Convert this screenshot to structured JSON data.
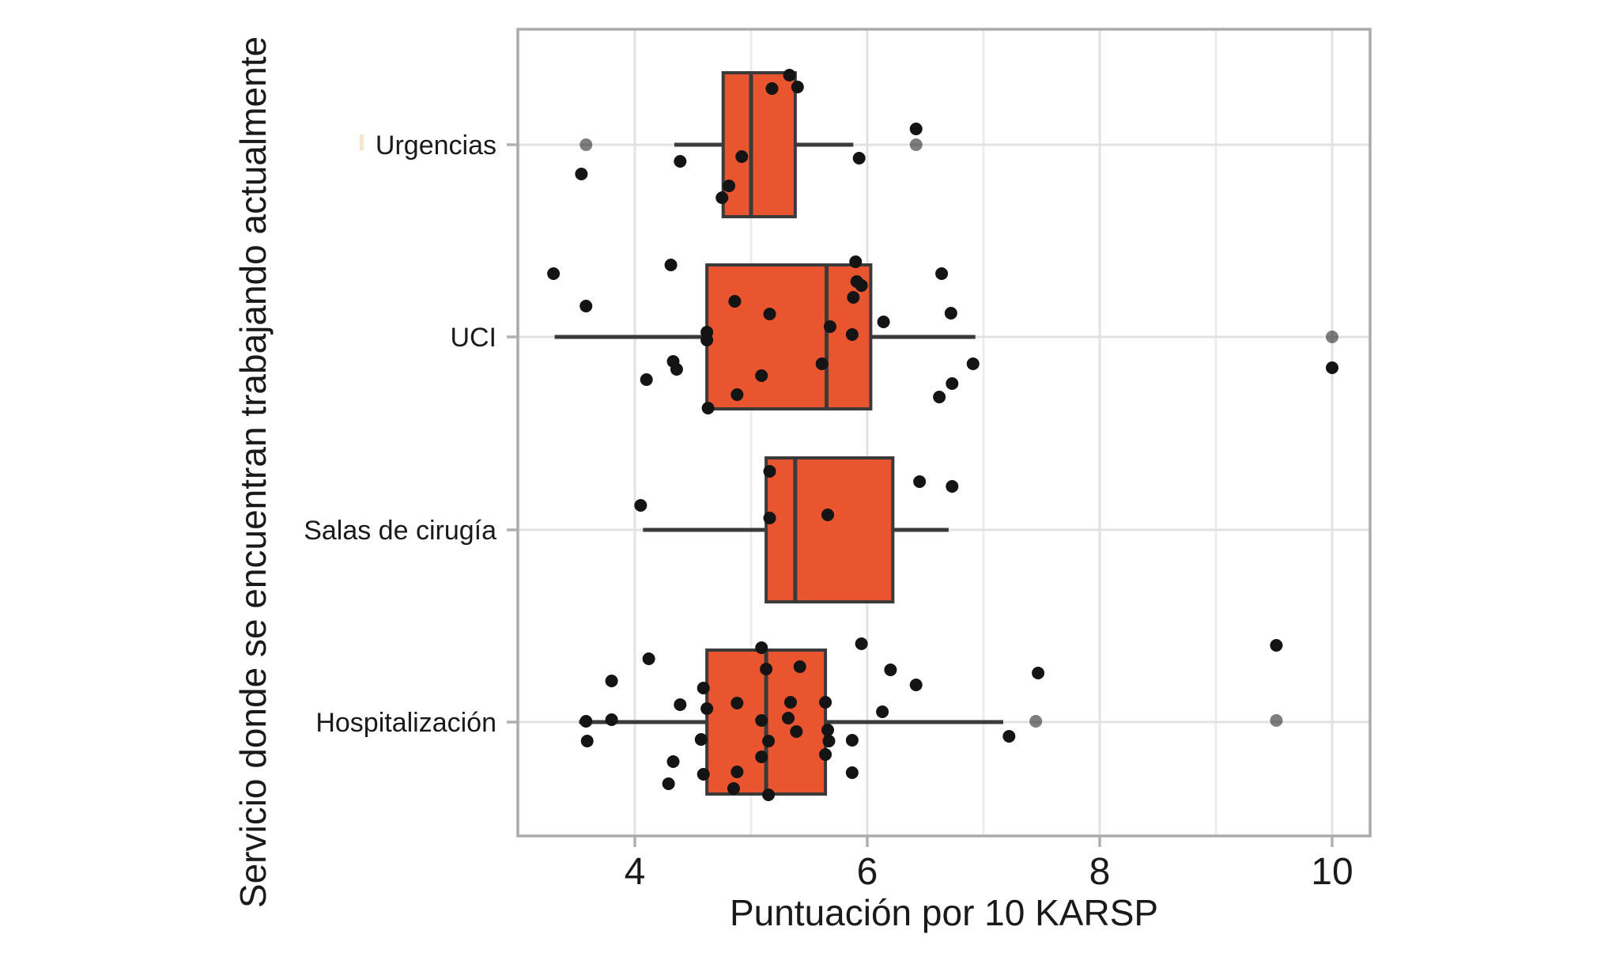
{
  "chart_data": {
    "type": "boxplot",
    "orientation": "horizontal",
    "title": "",
    "xlabel": "Puntuación por 10 KARSP",
    "ylabel": "Servicio donde se encuentran trabajando actualmente",
    "xlim": [
      2.99,
      10.33
    ],
    "x_ticks": [
      4,
      6,
      8,
      10
    ],
    "x_minor_gridlines": [
      5,
      7,
      9
    ],
    "grid": "on",
    "colors": {
      "box_fill": "#E8552F",
      "box_stroke": "#3A3A3A",
      "point": "#141414",
      "grid_major": "#E2E2E2",
      "grid_minor": "#ECECEC",
      "panel_border": "#ABABAB",
      "tick_mark": "#B0B0B0",
      "text": "#1A1A1A",
      "artifact": "#F4E7CC"
    },
    "categories": [
      {
        "label": "Urgencias",
        "q1": 4.76,
        "median": 5.0,
        "q3": 5.38,
        "whisker_low": 4.34,
        "whisker_high": 5.88,
        "points": [
          [
            3.58,
            0,
            1
          ],
          [
            3.54,
            37,
            0
          ],
          [
            4.39,
            21,
            0
          ],
          [
            4.75,
            67,
            0
          ],
          [
            4.81,
            52,
            0
          ],
          [
            4.92,
            15,
            0
          ],
          [
            5.18,
            -71,
            0
          ],
          [
            5.33,
            -88,
            0
          ],
          [
            5.4,
            -73,
            0
          ],
          [
            5.93,
            17,
            0
          ],
          [
            6.42,
            -20,
            0
          ],
          [
            6.42,
            0,
            1
          ]
        ]
      },
      {
        "label": "UCI",
        "q1": 4.62,
        "median": 5.65,
        "q3": 6.03,
        "whisker_low": 3.31,
        "whisker_high": 6.93,
        "points": [
          [
            3.3,
            -80,
            0
          ],
          [
            3.58,
            -39,
            0
          ],
          [
            4.1,
            54,
            0
          ],
          [
            4.31,
            -91,
            0
          ],
          [
            4.33,
            31,
            0
          ],
          [
            4.36,
            41,
            0
          ],
          [
            4.62,
            -6,
            0
          ],
          [
            4.62,
            4,
            0
          ],
          [
            4.63,
            90,
            0
          ],
          [
            4.86,
            -45,
            0
          ],
          [
            4.88,
            73,
            0
          ],
          [
            5.09,
            49,
            0
          ],
          [
            5.16,
            -29,
            0
          ],
          [
            5.61,
            34,
            0
          ],
          [
            5.68,
            -13,
            0
          ],
          [
            5.87,
            -3,
            0
          ],
          [
            5.88,
            -50,
            0
          ],
          [
            5.9,
            -95,
            0
          ],
          [
            5.91,
            -70,
            0
          ],
          [
            5.95,
            -65,
            0
          ],
          [
            6.14,
            -19,
            0
          ],
          [
            6.62,
            76,
            0
          ],
          [
            6.64,
            -80,
            0
          ],
          [
            6.72,
            -30,
            0
          ],
          [
            6.73,
            59,
            0
          ],
          [
            6.91,
            34,
            0
          ],
          [
            10.0,
            0,
            1
          ],
          [
            10.0,
            39,
            0
          ]
        ]
      },
      {
        "label": "Salas de cirugía",
        "q1": 5.13,
        "median": 5.38,
        "q3": 6.22,
        "whisker_low": 4.07,
        "whisker_high": 6.7,
        "points": [
          [
            4.05,
            -31,
            0
          ],
          [
            5.16,
            -74,
            0
          ],
          [
            5.16,
            -15,
            0
          ],
          [
            5.66,
            -19,
            0
          ],
          [
            6.45,
            -61,
            0
          ],
          [
            6.73,
            -55,
            0
          ]
        ]
      },
      {
        "label": "Hospitalización",
        "q1": 4.62,
        "median": 5.13,
        "q3": 5.64,
        "whisker_low": 3.52,
        "whisker_high": 7.17,
        "points": [
          [
            3.58,
            -1,
            0
          ],
          [
            3.59,
            24,
            0
          ],
          [
            3.8,
            -3,
            0
          ],
          [
            3.8,
            -52,
            0
          ],
          [
            4.12,
            -80,
            0
          ],
          [
            4.29,
            78,
            0
          ],
          [
            4.33,
            50,
            0
          ],
          [
            4.39,
            -22,
            0
          ],
          [
            4.57,
            22,
            0
          ],
          [
            4.59,
            -43,
            0
          ],
          [
            4.59,
            66,
            0
          ],
          [
            4.62,
            -17,
            0
          ],
          [
            4.85,
            84,
            0
          ],
          [
            4.88,
            -24,
            0
          ],
          [
            4.88,
            63,
            0
          ],
          [
            5.09,
            -94,
            0
          ],
          [
            5.09,
            -2,
            0
          ],
          [
            5.09,
            44,
            0
          ],
          [
            5.13,
            -67,
            0
          ],
          [
            5.15,
            24,
            0
          ],
          [
            5.15,
            92,
            0
          ],
          [
            5.32,
            -5,
            0
          ],
          [
            5.34,
            -25,
            0
          ],
          [
            5.39,
            12,
            0
          ],
          [
            5.42,
            -70,
            0
          ],
          [
            5.64,
            -25,
            0
          ],
          [
            5.64,
            41,
            0
          ],
          [
            5.66,
            10,
            0
          ],
          [
            5.67,
            24,
            0
          ],
          [
            5.87,
            23,
            0
          ],
          [
            5.87,
            64,
            0
          ],
          [
            5.95,
            -99,
            0
          ],
          [
            6.13,
            -13,
            0
          ],
          [
            6.2,
            -66,
            0
          ],
          [
            6.42,
            -47,
            0
          ],
          [
            7.22,
            18,
            0
          ],
          [
            7.45,
            -1,
            1
          ],
          [
            7.47,
            -62,
            0
          ],
          [
            9.52,
            -97,
            0
          ],
          [
            9.52,
            -2,
            1
          ]
        ]
      }
    ]
  }
}
